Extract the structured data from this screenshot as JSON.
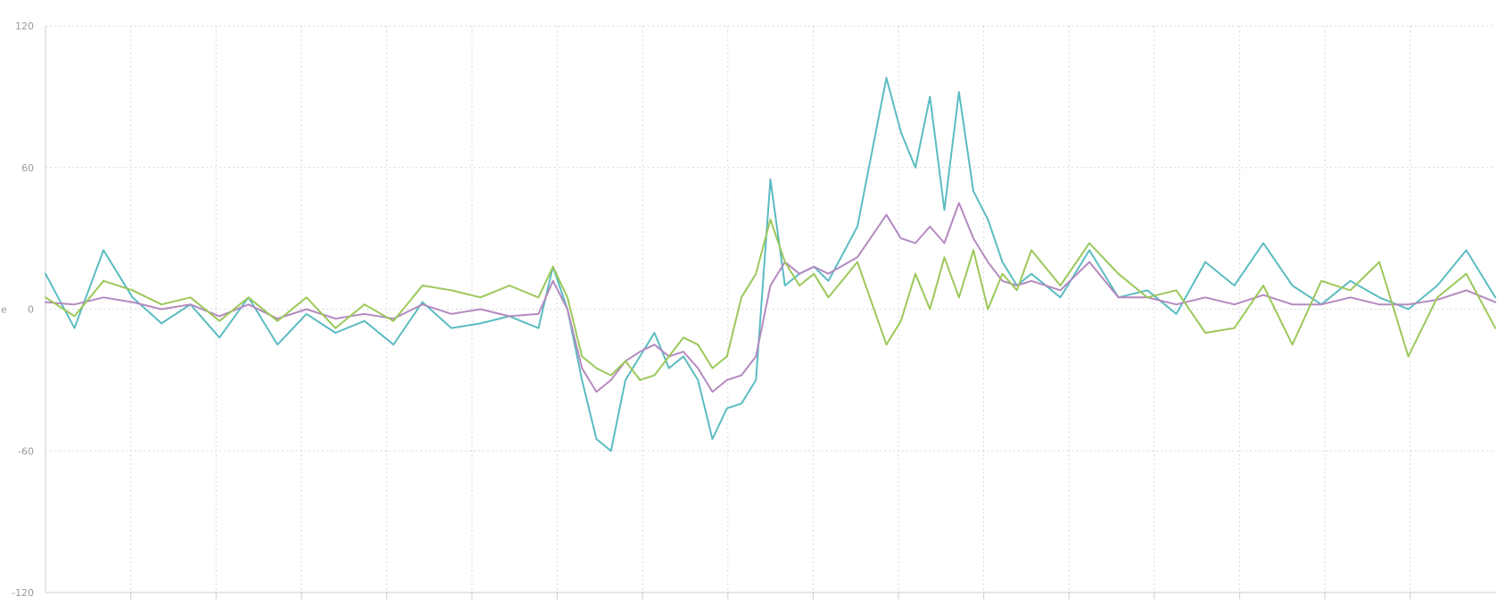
{
  "chart_data": {
    "type": "line",
    "title": "",
    "xlabel": "",
    "ylabel": "e",
    "ylim": [
      -120,
      120
    ],
    "yticks": [
      120,
      60,
      0,
      -60,
      -120
    ],
    "xlim": [
      0,
      1000
    ],
    "x_vertical_gridlines": 17,
    "grid": true,
    "legend": "none",
    "colors": {
      "grid": "#d9d9d9",
      "axis": "#cccccc",
      "tick_label": "#9a9a9a"
    },
    "series": [
      {
        "color": "#5bbcc2",
        "x": [
          0,
          20,
          40,
          60,
          80,
          100,
          120,
          140,
          160,
          180,
          200,
          220,
          240,
          260,
          280,
          300,
          320,
          340,
          350,
          360,
          370,
          380,
          390,
          400,
          410,
          420,
          430,
          440,
          450,
          460,
          470,
          480,
          490,
          500,
          510,
          520,
          530,
          540,
          560,
          580,
          590,
          600,
          610,
          620,
          630,
          640,
          650,
          660,
          670,
          680,
          700,
          720,
          740,
          760,
          780,
          800,
          820,
          840,
          860,
          880,
          900,
          920,
          940,
          960,
          980,
          1000
        ],
        "y": [
          15,
          -8,
          25,
          5,
          -6,
          2,
          -12,
          5,
          -15,
          -2,
          -10,
          -5,
          -15,
          3,
          -8,
          -6,
          -3,
          -8,
          18,
          0,
          -30,
          -55,
          -60,
          -30,
          -20,
          -10,
          -25,
          -20,
          -30,
          -55,
          -42,
          -40,
          -30,
          55,
          10,
          15,
          18,
          12,
          35,
          98,
          75,
          60,
          90,
          42,
          92,
          50,
          38,
          20,
          10,
          15,
          5,
          25,
          5,
          8,
          -2,
          20,
          10,
          28,
          10,
          2,
          12,
          5,
          0,
          10,
          25,
          5
        ]
      },
      {
        "color": "#b48ac0",
        "x": [
          0,
          20,
          40,
          60,
          80,
          100,
          120,
          140,
          160,
          180,
          200,
          220,
          240,
          260,
          280,
          300,
          320,
          340,
          350,
          360,
          370,
          380,
          390,
          400,
          410,
          420,
          430,
          440,
          450,
          460,
          470,
          480,
          490,
          500,
          510,
          520,
          530,
          540,
          560,
          580,
          590,
          600,
          610,
          620,
          630,
          640,
          650,
          660,
          670,
          680,
          700,
          720,
          740,
          760,
          780,
          800,
          820,
          840,
          860,
          880,
          900,
          920,
          940,
          960,
          980,
          1000
        ],
        "y": [
          3,
          2,
          5,
          3,
          0,
          2,
          -3,
          2,
          -4,
          0,
          -4,
          -2,
          -4,
          2,
          -2,
          0,
          -3,
          -2,
          12,
          0,
          -25,
          -35,
          -30,
          -22,
          -18,
          -15,
          -20,
          -18,
          -25,
          -35,
          -30,
          -28,
          -20,
          10,
          20,
          15,
          18,
          15,
          22,
          40,
          30,
          28,
          35,
          28,
          45,
          30,
          20,
          12,
          10,
          12,
          8,
          20,
          5,
          5,
          2,
          5,
          2,
          6,
          2,
          2,
          5,
          2,
          2,
          4,
          8,
          3
        ]
      },
      {
        "color": "#9cc85a",
        "x": [
          0,
          20,
          40,
          60,
          80,
          100,
          120,
          140,
          160,
          180,
          200,
          220,
          240,
          260,
          280,
          300,
          320,
          340,
          350,
          360,
          370,
          380,
          390,
          400,
          410,
          420,
          430,
          440,
          450,
          460,
          470,
          480,
          490,
          500,
          510,
          520,
          530,
          540,
          560,
          580,
          590,
          600,
          610,
          620,
          630,
          640,
          650,
          660,
          670,
          680,
          700,
          720,
          740,
          760,
          780,
          800,
          820,
          840,
          860,
          880,
          900,
          920,
          940,
          960,
          980,
          1000
        ],
        "y": [
          5,
          -3,
          12,
          8,
          2,
          5,
          -5,
          5,
          -5,
          5,
          -8,
          2,
          -5,
          10,
          8,
          5,
          10,
          5,
          18,
          5,
          -20,
          -25,
          -28,
          -22,
          -30,
          -28,
          -20,
          -12,
          -15,
          -25,
          -20,
          5,
          15,
          38,
          20,
          10,
          15,
          5,
          20,
          -15,
          -5,
          15,
          0,
          22,
          5,
          25,
          0,
          15,
          8,
          25,
          10,
          28,
          15,
          5,
          8,
          -10,
          -8,
          10,
          -15,
          12,
          8,
          20,
          -20,
          5,
          15,
          -8
        ]
      }
    ]
  }
}
